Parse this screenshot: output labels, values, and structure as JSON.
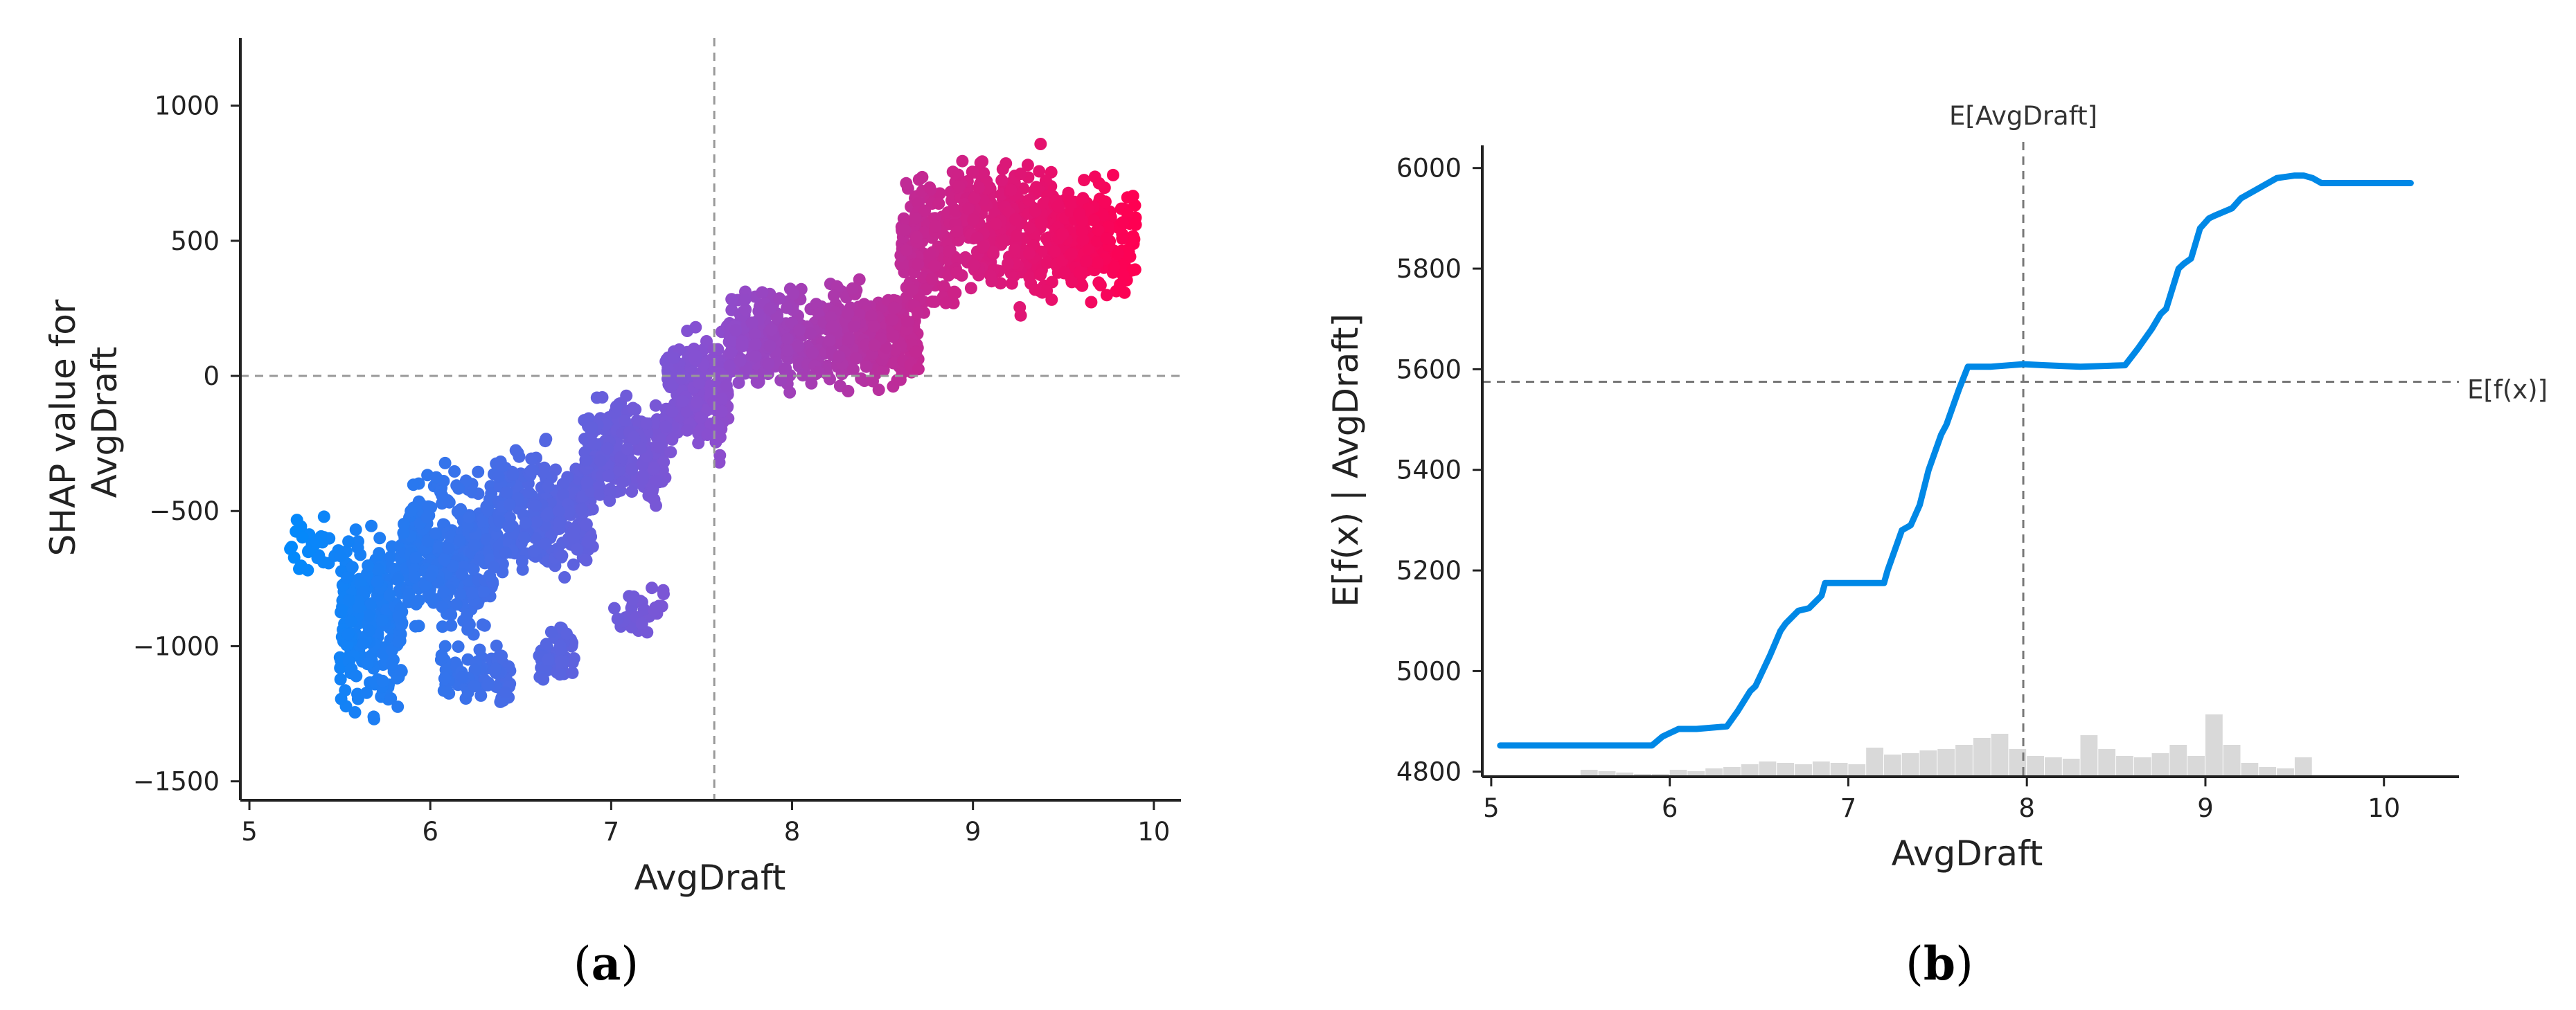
{
  "chart_data": [
    {
      "type": "scatter",
      "panel_label": {
        "open": "(",
        "letter": "a",
        "close": ")"
      },
      "xlabel": "AvgDraft",
      "ylabel_lines": [
        "SHAP value for",
        "AvgDraft"
      ],
      "xlim": [
        4.95,
        10.15
      ],
      "ylim": [
        -1570,
        1250
      ],
      "xticks": [
        5,
        6,
        7,
        8,
        9,
        10
      ],
      "xtick_labels": [
        "5",
        "6",
        "7",
        "8",
        "9",
        "10"
      ],
      "yticks": [
        -1500,
        -1000,
        -500,
        0,
        500,
        1000
      ],
      "ytick_labels": [
        "−1500",
        "−1000",
        "−500",
        "0",
        "500",
        "1000"
      ],
      "reference_lines": {
        "vertical_x": 7.57,
        "horizontal_y": 0
      },
      "color_scale": {
        "low": "#008afc",
        "mid": "#8a4fd0",
        "high": "#ff0052"
      },
      "point_clusters": [
        {
          "x": [
            5.2,
            5.5
          ],
          "y_center": -640,
          "y_spread": 160,
          "n": 30
        },
        {
          "x": [
            5.5,
            5.85
          ],
          "y_center": -900,
          "y_spread": 430,
          "n": 260
        },
        {
          "x": [
            5.85,
            6.35
          ],
          "y_center": -650,
          "y_spread": 380,
          "n": 300
        },
        {
          "x": [
            6.05,
            6.45
          ],
          "y_center": -1120,
          "y_spread": 160,
          "n": 80
        },
        {
          "x": [
            6.35,
            6.9
          ],
          "y_center": -520,
          "y_spread": 330,
          "n": 280
        },
        {
          "x": [
            6.6,
            6.8
          ],
          "y_center": -1030,
          "y_spread": 130,
          "n": 50
        },
        {
          "x": [
            6.85,
            7.3
          ],
          "y_center": -280,
          "y_spread": 280,
          "n": 220
        },
        {
          "x": [
            7.0,
            7.3
          ],
          "y_center": -860,
          "y_spread": 160,
          "n": 30
        },
        {
          "x": [
            7.3,
            7.65
          ],
          "y_center": -60,
          "y_spread": 300,
          "n": 220
        },
        {
          "x": [
            7.65,
            8.2
          ],
          "y_center": 140,
          "y_spread": 230,
          "n": 260
        },
        {
          "x": [
            8.2,
            8.7
          ],
          "y_center": 140,
          "y_spread": 250,
          "n": 260
        },
        {
          "x": [
            8.6,
            8.9
          ],
          "y_center": 480,
          "y_spread": 350,
          "n": 180
        },
        {
          "x": [
            8.9,
            9.45
          ],
          "y_center": 550,
          "y_spread": 380,
          "n": 320
        },
        {
          "x": [
            9.45,
            9.9
          ],
          "y_center": 500,
          "y_spread": 280,
          "n": 260
        }
      ]
    },
    {
      "type": "line",
      "panel_label": {
        "open": "(",
        "letter": "b",
        "close": ")"
      },
      "xlabel": "AvgDraft",
      "ylabel": "E[f(x) | AvgDraft]",
      "xlim": [
        4.95,
        10.42
      ],
      "ylim": [
        4790,
        6045
      ],
      "xticks": [
        5,
        6,
        7,
        8,
        9,
        10
      ],
      "xtick_labels": [
        "5",
        "6",
        "7",
        "8",
        "9",
        "10"
      ],
      "yticks": [
        4800,
        5000,
        5200,
        5400,
        5600,
        5800,
        6000
      ],
      "ytick_labels": [
        "4800",
        "5000",
        "5200",
        "5400",
        "5600",
        "5800",
        "6000"
      ],
      "reference_lines": {
        "vertical_x": 7.98,
        "vertical_label": "E[AvgDraft]",
        "horizontal_y": 5575,
        "horizontal_label": "E[f(x)]"
      },
      "line_color": "#0088e6",
      "series": [
        {
          "x": [
            5.05,
            5.5,
            5.9,
            5.96,
            6.05,
            6.15,
            6.32,
            6.38,
            6.45,
            6.48,
            6.56,
            6.62,
            6.65,
            6.72,
            6.78,
            6.85,
            6.87,
            6.9,
            7.0,
            7.1,
            7.2,
            7.22,
            7.3,
            7.35,
            7.4,
            7.45,
            7.52,
            7.55,
            7.62,
            7.67,
            7.8,
            7.98,
            8.1,
            8.3,
            8.55,
            8.62,
            8.7,
            8.75,
            8.78,
            8.85,
            8.88,
            8.92,
            8.97,
            9.02,
            9.05,
            9.15,
            9.2,
            9.3,
            9.4,
            9.5,
            9.55,
            9.6,
            9.65,
            9.75,
            10.15
          ],
          "y": [
            4852,
            4852,
            4852,
            4870,
            4885,
            4885,
            4890,
            4920,
            4960,
            4970,
            5030,
            5080,
            5095,
            5120,
            5125,
            5150,
            5175,
            5175,
            5175,
            5175,
            5175,
            5200,
            5280,
            5290,
            5330,
            5400,
            5470,
            5490,
            5560,
            5605,
            5605,
            5610,
            5608,
            5605,
            5608,
            5640,
            5680,
            5710,
            5720,
            5800,
            5810,
            5820,
            5880,
            5900,
            5905,
            5920,
            5940,
            5960,
            5980,
            5985,
            5985,
            5980,
            5970,
            5970,
            5970
          ]
        }
      ],
      "histogram": {
        "color": "#d9d9d9",
        "bins_x": [
          5.55,
          5.65,
          5.75,
          5.85,
          5.95,
          6.05,
          6.15,
          6.25,
          6.35,
          6.45,
          6.55,
          6.65,
          6.75,
          6.85,
          6.95,
          7.05,
          7.15,
          7.25,
          7.35,
          7.45,
          7.55,
          7.65,
          7.75,
          7.85,
          7.95,
          8.05,
          8.15,
          8.25,
          8.35,
          8.45,
          8.55,
          8.65,
          8.75,
          8.85,
          8.95,
          9.05,
          9.15,
          9.25,
          9.35,
          9.45,
          9.55
        ],
        "bins_height": [
          10,
          8,
          6,
          4,
          4,
          10,
          8,
          12,
          14,
          18,
          22,
          20,
          18,
          22,
          20,
          18,
          42,
          32,
          34,
          38,
          40,
          46,
          56,
          62,
          40,
          30,
          28,
          26,
          60,
          40,
          30,
          28,
          34,
          46,
          30,
          90,
          46,
          20,
          14,
          12,
          28
        ]
      }
    }
  ]
}
